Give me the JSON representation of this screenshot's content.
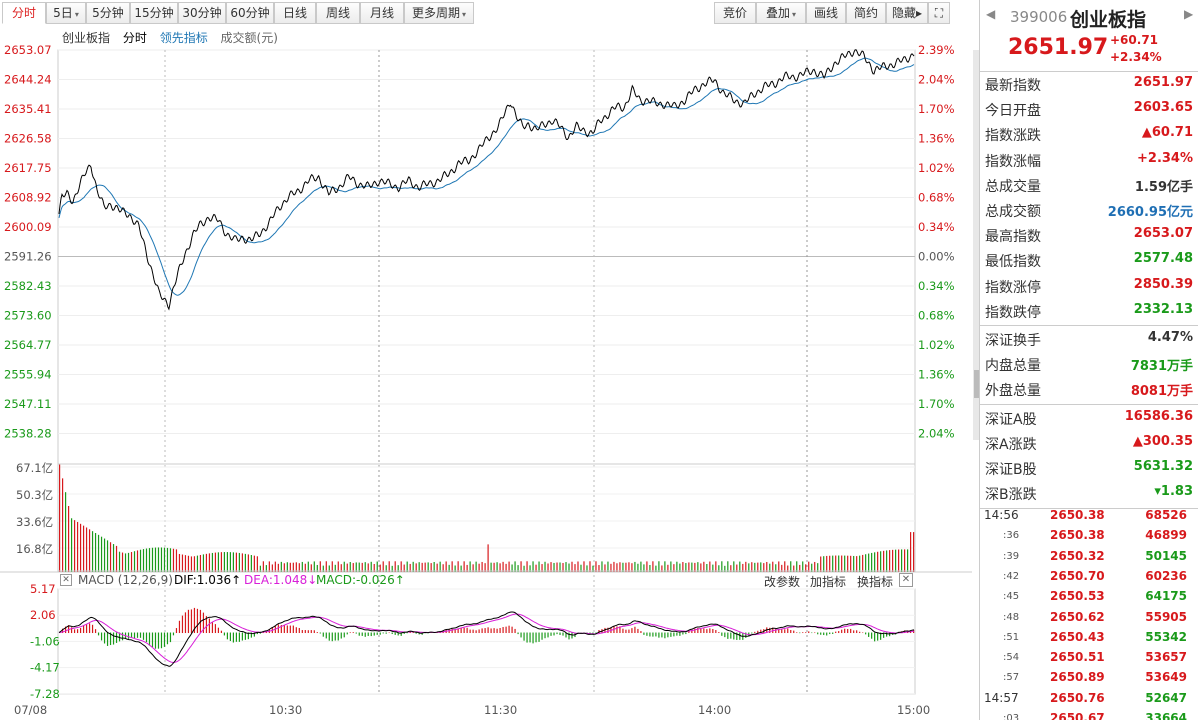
{
  "toolbar": {
    "left_tabs": [
      {
        "label": "分时",
        "active": true
      },
      {
        "label": "5日",
        "caret": true
      },
      {
        "label": "5分钟"
      },
      {
        "label": "15分钟"
      },
      {
        "label": "30分钟"
      },
      {
        "label": "60分钟"
      },
      {
        "label": "日线"
      },
      {
        "label": "周线"
      },
      {
        "label": "月线"
      },
      {
        "label": "更多周期",
        "caret": true
      }
    ],
    "right_tabs": [
      {
        "label": "竞价"
      },
      {
        "label": "叠加",
        "caret": true
      },
      {
        "label": "画线"
      },
      {
        "label": "简约"
      },
      {
        "label": "隐藏▸"
      }
    ],
    "fullscreen_icon": "expand-icon"
  },
  "legend": {
    "name": "创业板指",
    "mode": "分时",
    "lead": "领先指标",
    "amount": "成交额(元)"
  },
  "axes": {
    "price_ticks": [
      "2653.07",
      "2644.24",
      "2635.41",
      "2626.58",
      "2617.75",
      "2608.92",
      "2600.09",
      "2591.26",
      "2582.43",
      "2573.60",
      "2564.77",
      "2555.94",
      "2547.11",
      "2538.28"
    ],
    "pct_ticks": [
      "2.39%",
      "2.04%",
      "1.70%",
      "1.36%",
      "1.02%",
      "0.68%",
      "0.34%",
      "0.00%",
      "0.34%",
      "0.68%",
      "1.02%",
      "1.36%",
      "1.70%",
      "2.04%"
    ],
    "vol_ticks": [
      "67.1亿",
      "50.3亿",
      "33.6亿",
      "16.8亿"
    ],
    "macd_ticks": [
      "5.17",
      "2.06",
      "-1.06",
      "-4.17",
      "-7.28"
    ],
    "time_ticks": [
      "07/08",
      "10:30",
      "11:30",
      "14:00",
      "15:00"
    ]
  },
  "macd": {
    "title": "MACD (12,26,9)",
    "dif": "DIF:1.036↑",
    "dea": "DEA:1.048↓",
    "macd": "MACD:-0.026↑",
    "actions": [
      "改参数",
      "加指标",
      "换指标"
    ]
  },
  "colors": {
    "up": "#d7191c",
    "down": "#1a9a1a",
    "price": "#000000",
    "avg": "#1f77b4",
    "dea": "#d81fd8"
  },
  "quote": {
    "code": "399006",
    "name": "创业板指",
    "price": "2651.97",
    "change": "+60.71",
    "change_pct": "+2.34%"
  },
  "stats": [
    {
      "k": "最新指数",
      "v": "2651.97",
      "c": "up"
    },
    {
      "k": "今日开盘",
      "v": "2603.65",
      "c": "up"
    },
    {
      "k": "指数涨跌",
      "v": "▲60.71",
      "c": "up"
    },
    {
      "k": "指数涨幅",
      "v": "+2.34%",
      "c": "up"
    },
    {
      "k": "总成交量",
      "v": "1.59亿手",
      "c": "plain"
    },
    {
      "k": "总成交额",
      "v": "2660.95亿元",
      "c": "blue"
    },
    {
      "k": "最高指数",
      "v": "2653.07",
      "c": "up"
    },
    {
      "k": "最低指数",
      "v": "2577.48",
      "c": "down"
    },
    {
      "k": "指数涨停",
      "v": "2850.39",
      "c": "up"
    },
    {
      "k": "指数跌停",
      "v": "2332.13",
      "c": "down"
    }
  ],
  "stats2": [
    {
      "k": "深证换手",
      "v": "4.47%",
      "c": "plain"
    },
    {
      "k": "内盘总量",
      "v": "7831万手",
      "c": "down"
    },
    {
      "k": "外盘总量",
      "v": "8081万手",
      "c": "up"
    }
  ],
  "stats3": [
    {
      "k": "深证A股",
      "v": "16586.36",
      "c": "up"
    },
    {
      "k": "深A涨跌",
      "v": "▲300.35",
      "c": "up"
    },
    {
      "k": "深证B股",
      "v": "5631.32",
      "c": "down"
    },
    {
      "k": "深B涨跌",
      "v": "▾1.83",
      "c": "down"
    }
  ],
  "ticks": [
    {
      "t": "14:56",
      "p": "2650.38",
      "v": "68526",
      "c": "up",
      "main": true
    },
    {
      "t": ":36",
      "p": "2650.38",
      "v": "46899",
      "c": "up"
    },
    {
      "t": ":39",
      "p": "2650.32",
      "v": "50145",
      "c": "down"
    },
    {
      "t": ":42",
      "p": "2650.70",
      "v": "60236",
      "c": "up"
    },
    {
      "t": ":45",
      "p": "2650.53",
      "v": "64175",
      "c": "down"
    },
    {
      "t": ":48",
      "p": "2650.62",
      "v": "55905",
      "c": "up"
    },
    {
      "t": ":51",
      "p": "2650.43",
      "v": "55342",
      "c": "down"
    },
    {
      "t": ":54",
      "p": "2650.51",
      "v": "53657",
      "c": "up"
    },
    {
      "t": ":57",
      "p": "2650.89",
      "v": "53649",
      "c": "up"
    },
    {
      "t": "14:57",
      "p": "2650.76",
      "v": "52647",
      "c": "down",
      "main": true
    },
    {
      "t": ":03",
      "p": "2650.67",
      "v": "33664",
      "c": "down"
    }
  ]
}
